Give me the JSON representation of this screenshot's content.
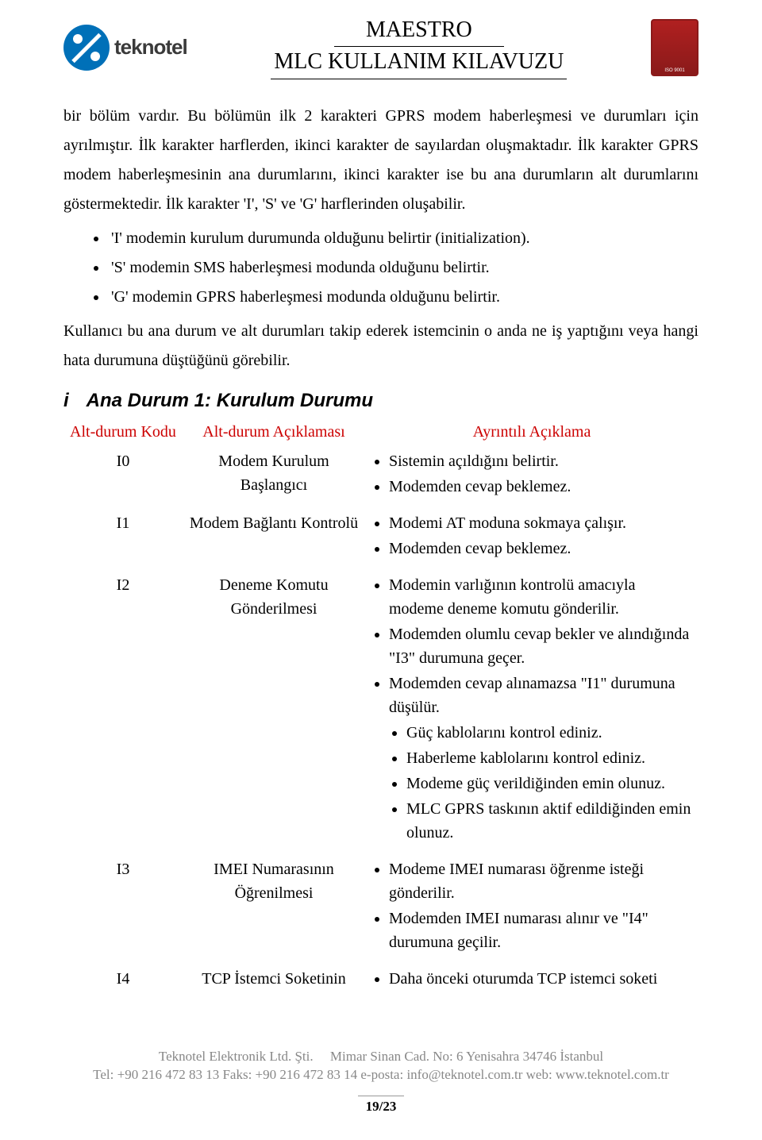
{
  "header": {
    "brand": "teknotel",
    "title1": "MAESTRO",
    "title2": "MLC KULLANIM KILAVUZU"
  },
  "intro": {
    "p1": "bir bölüm vardır. Bu bölümün ilk 2 karakteri GPRS modem haberleşmesi ve durumları için ayrılmıştır. İlk karakter harflerden, ikinci karakter de sayılardan oluşmaktadır. İlk karakter GPRS modem haberleşmesinin ana durumlarını, ikinci karakter ise bu ana durumların alt durumlarını göstermektedir. İlk karakter 'I', 'S' ve 'G' harflerinden oluşabilir.",
    "b1": "'I' modemin kurulum durumunda olduğunu belirtir (initialization).",
    "b2": "'S' modemin SMS haberleşmesi modunda olduğunu belirtir.",
    "b3": "'G' modemin GPRS haberleşmesi modunda olduğunu belirtir.",
    "p2": "Kullanıcı bu ana durum ve alt durumları takip ederek istemcinin o anda ne iş yaptığını veya hangi hata durumuna düştüğünü görebilir."
  },
  "section": {
    "num": "i",
    "title": "Ana Durum 1: Kurulum Durumu"
  },
  "table": {
    "h1": "Alt-durum Kodu",
    "h2": "Alt-durum Açıklaması",
    "h3": "Ayrıntılı Açıklama",
    "rows": [
      {
        "code": "I0",
        "desc": "Modem Kurulum Başlangıcı",
        "details": [
          "Sistemin açıldığını belirtir.",
          "Modemden cevap beklemez."
        ],
        "sub": []
      },
      {
        "code": "I1",
        "desc": "Modem Bağlantı Kontrolü",
        "details": [
          "Modemi AT moduna sokmaya çalışır.",
          "Modemden cevap beklemez."
        ],
        "sub": []
      },
      {
        "code": "I2",
        "desc": "Deneme Komutu Gönderilmesi",
        "details": [
          "Modemin varlığının kontrolü amacıyla modeme deneme komutu gönderilir.",
          "Modemden olumlu cevap bekler ve alındığında \"I3\" durumuna geçer.",
          "Modemden cevap alınamazsa \"I1\" durumuna düşülür."
        ],
        "sub": [
          "Güç kablolarını kontrol ediniz.",
          "Haberleme kablolarını kontrol ediniz.",
          "Modeme güç verildiğinden emin olunuz.",
          "MLC GPRS taskının aktif edildiğinden emin olunuz."
        ]
      },
      {
        "code": "I3",
        "desc": "IMEI Numarasının Öğrenilmesi",
        "details": [
          "Modeme IMEI numarası öğrenme isteği gönderilir.",
          "Modemden IMEI numarası alınır ve \"I4\" durumuna geçilir."
        ],
        "sub": []
      },
      {
        "code": "I4",
        "desc": "TCP İstemci Soketinin",
        "details": [
          "Daha önceki oturumda TCP istemci soketi"
        ],
        "sub": []
      }
    ]
  },
  "footer": {
    "l1a": "Teknotel Elektronik Ltd. Şti.",
    "l1b": "Mimar Sinan Cad. No: 6 Yenisahra 34746 İstanbul",
    "l2": "Tel: +90 216 472 83 13    Faks: +90 216 472 83 14    e-posta: info@teknotel.com.tr    web: www.teknotel.com.tr",
    "page": "19/23"
  },
  "colors": {
    "heading_red": "#cc0000",
    "footer_gray": "#888888",
    "brand_blue": "#0070b8"
  }
}
